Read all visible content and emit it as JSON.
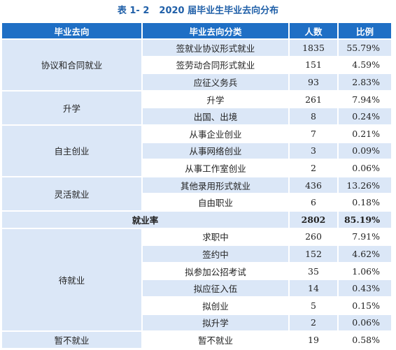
{
  "title": {
    "number": "表 1- 2",
    "text": "2020 届毕业生毕业去向分布"
  },
  "headers": [
    "毕业去向",
    "毕业去向分类",
    "人数",
    "比例"
  ],
  "groups": [
    {
      "name": "协议和合同就业",
      "rows": [
        {
          "sub": "签就业协议形式就业",
          "count": "1835",
          "pct": "55.79%"
        },
        {
          "sub": "签劳动合同形式就业",
          "count": "151",
          "pct": "4.59%"
        },
        {
          "sub": "应征义务兵",
          "count": "93",
          "pct": "2.83%"
        }
      ]
    },
    {
      "name": "升学",
      "rows": [
        {
          "sub": "升学",
          "count": "261",
          "pct": "7.94%"
        },
        {
          "sub": "出国、出境",
          "count": "8",
          "pct": "0.24%"
        }
      ]
    },
    {
      "name": "自主创业",
      "rows": [
        {
          "sub": "从事企业创业",
          "count": "7",
          "pct": "0.21%"
        },
        {
          "sub": "从事网络创业",
          "count": "3",
          "pct": "0.09%"
        },
        {
          "sub": "从事工作室创业",
          "count": "2",
          "pct": "0.06%"
        }
      ]
    },
    {
      "name": "灵活就业",
      "rows": [
        {
          "sub": "其他录用形式就业",
          "count": "436",
          "pct": "13.26%"
        },
        {
          "sub": "自由职业",
          "count": "6",
          "pct": "0.18%"
        }
      ]
    }
  ],
  "employment_rate": {
    "label": "就业率",
    "count": "2802",
    "pct": "85.19%"
  },
  "groups2": [
    {
      "name": "待就业",
      "rows": [
        {
          "sub": "求职中",
          "count": "260",
          "pct": "7.91%"
        },
        {
          "sub": "签约中",
          "count": "152",
          "pct": "4.62%"
        },
        {
          "sub": "拟参加公招考试",
          "count": "35",
          "pct": "1.06%"
        },
        {
          "sub": "拟应征入伍",
          "count": "14",
          "pct": "0.43%"
        },
        {
          "sub": "拟创业",
          "count": "5",
          "pct": "0.15%"
        },
        {
          "sub": "拟升学",
          "count": "2",
          "pct": "0.06%"
        }
      ]
    },
    {
      "name": "暂不就业",
      "rows": [
        {
          "sub": "暂不就业",
          "count": "19",
          "pct": "0.58%"
        }
      ]
    }
  ]
}
